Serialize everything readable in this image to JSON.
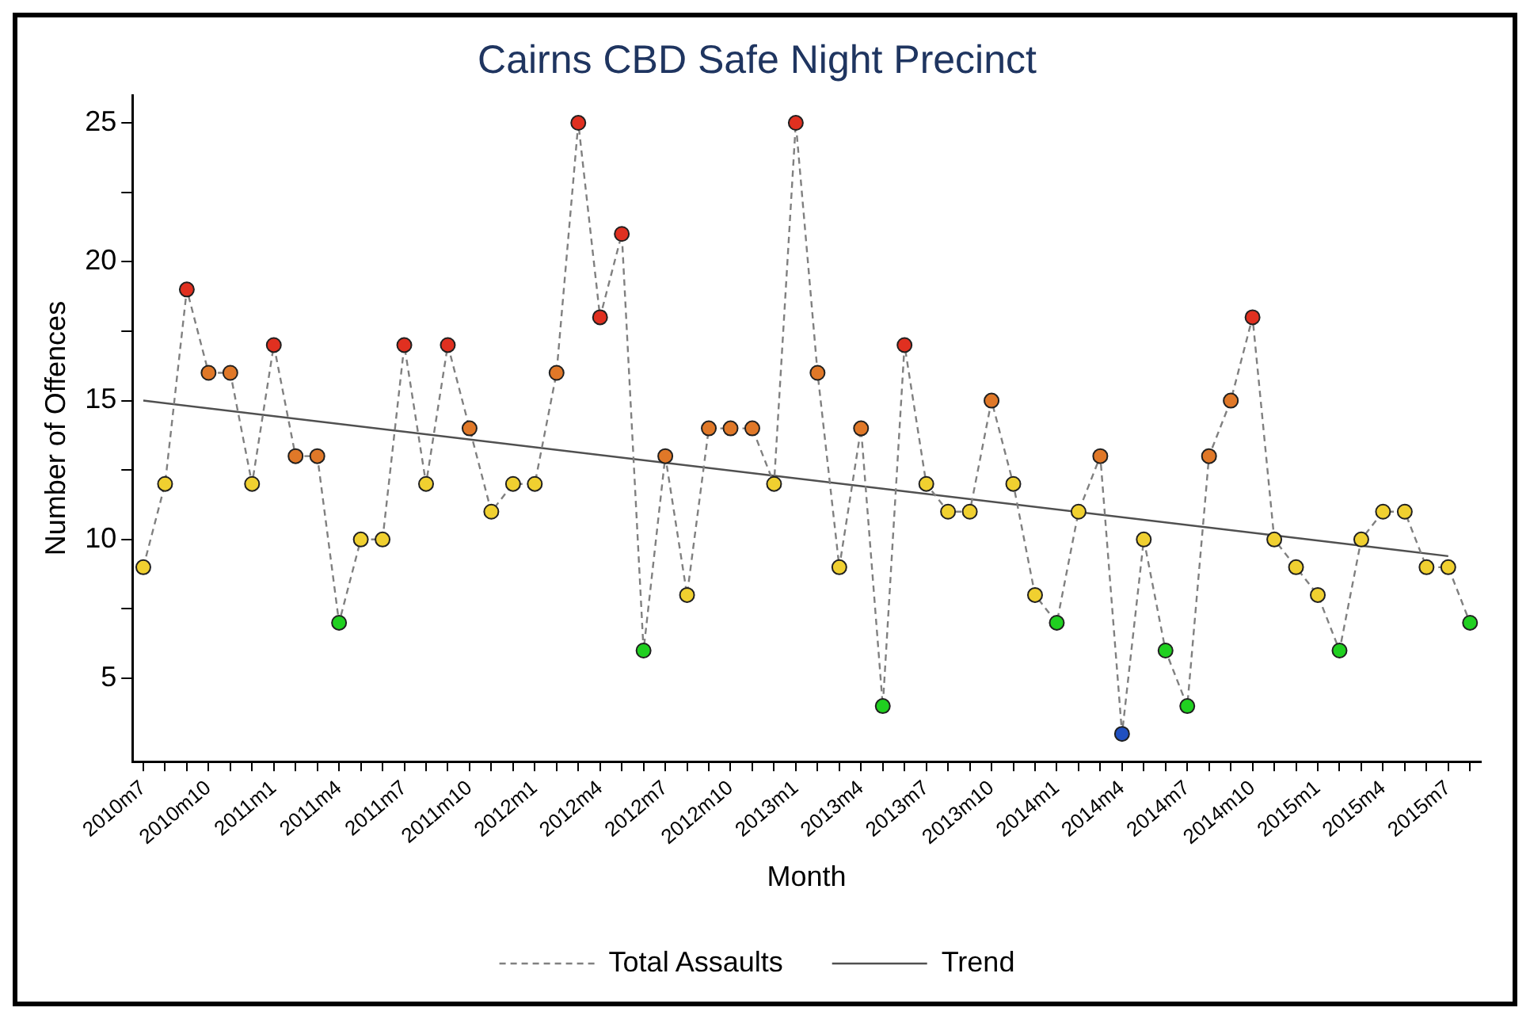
{
  "chart_data": {
    "type": "line",
    "title": "Cairns CBD Safe Night Precinct",
    "xlabel": "Month",
    "ylabel": "Number of Offences",
    "categories": [
      "2010m7",
      null,
      null,
      "2010m10",
      null,
      null,
      "2011m1",
      null,
      null,
      "2011m4",
      null,
      null,
      "2011m7",
      null,
      null,
      "2011m10",
      null,
      null,
      "2012m1",
      null,
      null,
      "2012m4",
      null,
      null,
      "2012m7",
      null,
      null,
      "2012m10",
      null,
      null,
      "2013m1",
      null,
      null,
      "2013m4",
      null,
      null,
      "2013m7",
      null,
      null,
      "2013m10",
      null,
      null,
      "2014m1",
      null,
      null,
      "2014m4",
      null,
      null,
      "2014m7",
      null,
      null,
      "2014m10",
      null,
      null,
      "2015m1",
      null,
      null,
      "2015m4",
      null,
      null,
      "2015m7",
      null
    ],
    "series": [
      {
        "name": "Total Assaults",
        "type": "line",
        "color": "#808080",
        "line_style": "dashed",
        "marker": "circle",
        "values": [
          9,
          12,
          19,
          16,
          16,
          12,
          17,
          13,
          13,
          7,
          10,
          10,
          17,
          12,
          17,
          14,
          11,
          12,
          12,
          16,
          25,
          18,
          21,
          6,
          13,
          8,
          14,
          14,
          14,
          12,
          25,
          16,
          9,
          14,
          4,
          17,
          12,
          11,
          11,
          15,
          12,
          8,
          7,
          11,
          13,
          3,
          10,
          6,
          4,
          13,
          15,
          18,
          10,
          9,
          8,
          6,
          10,
          11,
          11,
          9,
          9,
          7
        ],
        "colors": [
          "#f0d030",
          "#f0d030",
          "#e03020",
          "#e07828",
          "#e07828",
          "#f0d030",
          "#e03020",
          "#e07828",
          "#e07828",
          "#20d020",
          "#f0d030",
          "#f0d030",
          "#e03020",
          "#f0d030",
          "#e03020",
          "#e07828",
          "#f0d030",
          "#f0d030",
          "#f0d030",
          "#e07828",
          "#e03020",
          "#e03020",
          "#e03020",
          "#20d020",
          "#e07828",
          "#f0d030",
          "#e07828",
          "#e07828",
          "#e07828",
          "#f0d030",
          "#e03020",
          "#e07828",
          "#f0d030",
          "#e07828",
          "#20d020",
          "#e03020",
          "#f0d030",
          "#f0d030",
          "#f0d030",
          "#e07828",
          "#f0d030",
          "#f0d030",
          "#20d020",
          "#f0d030",
          "#e07828",
          "#2050c0",
          "#f0d030",
          "#20d020",
          "#20d020",
          "#e07828",
          "#e07828",
          "#e03020",
          "#f0d030",
          "#f0d030",
          "#f0d030",
          "#20d020",
          "#f0d030",
          "#f0d030",
          "#f0d030",
          "#f0d030",
          "#f0d030",
          "#20d020"
        ]
      },
      {
        "name": "Trend",
        "type": "line",
        "color": "#505050",
        "line_style": "solid",
        "marker": "none",
        "x": [
          "2010m7",
          "2015m7"
        ],
        "values": [
          15,
          9.4
        ]
      }
    ],
    "ylim": [
      2,
      26
    ],
    "yticks": [
      5,
      {
        "value": 7.5,
        "label": null
      },
      10,
      {
        "value": 12.5,
        "label": null
      },
      15,
      {
        "value": 17.5,
        "label": null
      },
      20,
      {
        "value": 22.5,
        "label": null
      },
      25
    ],
    "grid": false,
    "legend": "bottom"
  }
}
